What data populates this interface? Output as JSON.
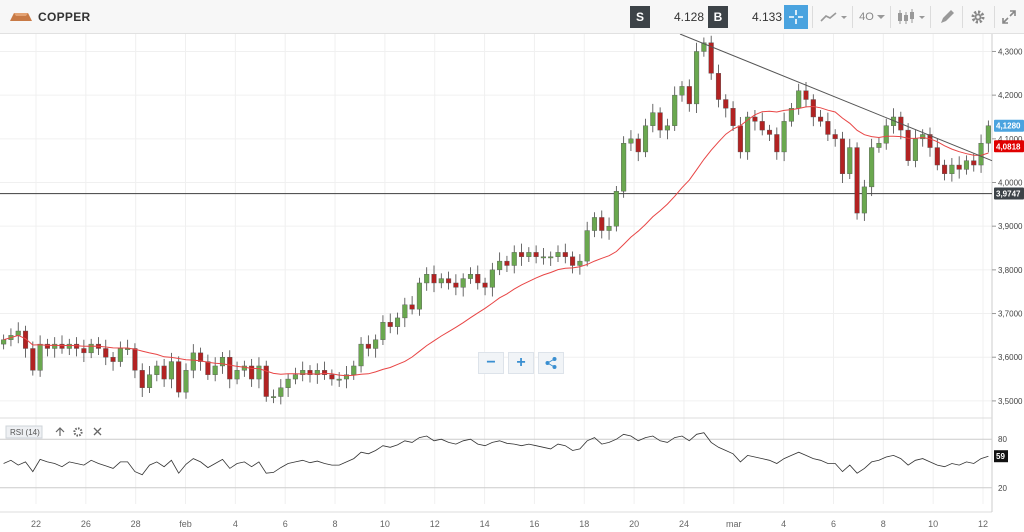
{
  "header": {
    "title": "COPPER",
    "sell_letter": "S",
    "sell_price": "4.128",
    "buy_letter": "B",
    "buy_price": "4.133",
    "interval_label": "4O"
  },
  "colors": {
    "up": "#6aa84f",
    "down": "#b22222",
    "ma": "#e84545",
    "active": "#4aa3df",
    "dark_badge": "#3d4348"
  },
  "icons": [
    "copper-bar-icon",
    "crosshair-icon",
    "line-chart-icon",
    "candles-icon",
    "draw-pencil-icon",
    "gear-icon",
    "expand-icon"
  ],
  "chart_data": [
    {
      "type": "candlestick",
      "x_tick_labels": [
        "22",
        "26",
        "28",
        "feb",
        "4",
        "6",
        "8",
        "10",
        "12",
        "14",
        "16",
        "18",
        "20",
        "24",
        "mar",
        "4",
        "6",
        "8",
        "10",
        "12"
      ],
      "y_tick_labels": [
        "3,5000",
        "3,6000",
        "3,7000",
        "3,8000",
        "3,9000",
        "4,0000",
        "4,1000",
        "4,2000",
        "4,3000"
      ],
      "ylim": [
        3.47,
        4.34
      ],
      "current_price_label": "4,1280",
      "ma_price_label": "4,0818",
      "level_label": "3,9747",
      "level_value": 3.9747,
      "trendline": {
        "from": [
          0.0,
          4.34
        ],
        "to": [
          1.0,
          4.05
        ]
      },
      "close": [
        3.64,
        3.65,
        3.66,
        3.62,
        3.57,
        3.63,
        3.62,
        3.63,
        3.62,
        3.63,
        3.62,
        3.61,
        3.63,
        3.62,
        3.6,
        3.59,
        3.62,
        3.62,
        3.57,
        3.53,
        3.56,
        3.58,
        3.55,
        3.59,
        3.52,
        3.57,
        3.61,
        3.59,
        3.56,
        3.58,
        3.6,
        3.55,
        3.57,
        3.58,
        3.55,
        3.58,
        3.51,
        3.51,
        3.53,
        3.55,
        3.56,
        3.57,
        3.56,
        3.57,
        3.56,
        3.55,
        3.55,
        3.56,
        3.58,
        3.63,
        3.62,
        3.64,
        3.68,
        3.67,
        3.69,
        3.72,
        3.71,
        3.77,
        3.79,
        3.77,
        3.78,
        3.77,
        3.76,
        3.78,
        3.79,
        3.77,
        3.76,
        3.8,
        3.82,
        3.81,
        3.84,
        3.83,
        3.84,
        3.83,
        3.83,
        3.83,
        3.84,
        3.83,
        3.81,
        3.82,
        3.89,
        3.92,
        3.89,
        3.9,
        3.98,
        4.09,
        4.1,
        4.07,
        4.13,
        4.16,
        4.12,
        4.13,
        4.2,
        4.22,
        4.18,
        4.3,
        4.32,
        4.25,
        4.19,
        4.17,
        4.13,
        4.07,
        4.15,
        4.14,
        4.12,
        4.11,
        4.07,
        4.14,
        4.17,
        4.21,
        4.19,
        4.15,
        4.14,
        4.11,
        4.1,
        4.02,
        4.08,
        3.93,
        3.99,
        4.08,
        4.09,
        4.13,
        4.15,
        4.12,
        4.05,
        4.1,
        4.11,
        4.08,
        4.04,
        4.02,
        4.04,
        4.03,
        4.05,
        4.04,
        4.09,
        4.13
      ]
    },
    {
      "type": "line",
      "title": "RSI (14)",
      "y_tick_labels": [
        "20",
        "80"
      ],
      "ylim": [
        0,
        100
      ],
      "current_value_label": "59",
      "values": [
        50,
        54,
        48,
        52,
        40,
        55,
        52,
        50,
        46,
        52,
        50,
        48,
        54,
        50,
        47,
        44,
        52,
        52,
        40,
        36,
        48,
        52,
        46,
        54,
        38,
        49,
        56,
        52,
        45,
        50,
        55,
        44,
        50,
        52,
        46,
        52,
        38,
        39,
        45,
        50,
        52,
        54,
        51,
        53,
        50,
        48,
        48,
        52,
        56,
        64,
        62,
        66,
        72,
        70,
        73,
        78,
        76,
        82,
        84,
        78,
        80,
        76,
        74,
        78,
        80,
        74,
        72,
        76,
        78,
        75,
        74,
        72,
        74,
        72,
        70,
        68,
        74,
        72,
        66,
        68,
        78,
        82,
        74,
        76,
        80,
        86,
        84,
        78,
        82,
        84,
        78,
        76,
        82,
        84,
        78,
        86,
        88,
        76,
        70,
        66,
        62,
        52,
        60,
        58,
        56,
        54,
        50,
        56,
        60,
        64,
        60,
        56,
        54,
        50,
        50,
        40,
        48,
        38,
        44,
        52,
        54,
        58,
        60,
        56,
        48,
        54,
        56,
        52,
        48,
        46,
        50,
        48,
        52,
        50,
        56,
        59
      ]
    }
  ]
}
